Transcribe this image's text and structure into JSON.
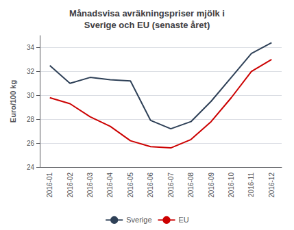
{
  "chart_data": {
    "type": "line",
    "title": "Månadsvisa avräkningspriser mjölk i\nSverige och EU (senaste året)",
    "y_label": "Euro/100 kg",
    "categories": [
      "2016-01",
      "2016-02",
      "2016-03",
      "2016-04",
      "2016-05",
      "2016-06",
      "2016-07",
      "2016-08",
      "2016-09",
      "2016-10",
      "2016-11",
      "2016-12"
    ],
    "series": [
      {
        "name": "Sverige",
        "color": "#2E4057",
        "values": [
          32.5,
          31.0,
          31.5,
          31.3,
          31.2,
          27.9,
          27.2,
          27.8,
          29.5,
          31.5,
          33.5,
          34.4
        ]
      },
      {
        "name": "EU",
        "color": "#CC0000",
        "values": [
          29.8,
          29.3,
          28.2,
          27.4,
          26.2,
          25.7,
          25.6,
          26.3,
          27.8,
          29.8,
          32.0,
          33.0
        ]
      }
    ],
    "ylim": [
      24,
      35
    ],
    "yticks": [
      24,
      26,
      28,
      30,
      32,
      34
    ],
    "grid": true,
    "legend": "bottom"
  }
}
